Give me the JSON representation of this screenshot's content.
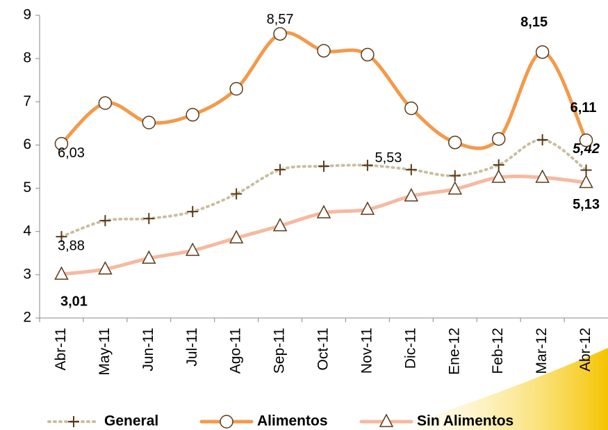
{
  "chart_data": {
    "type": "line",
    "categories": [
      "Abr-11",
      "May-11",
      "Jun-11",
      "Jul-11",
      "Ago-11",
      "Sep-11",
      "Oct-11",
      "Nov-11",
      "Dic-11",
      "Ene-12",
      "Feb-12",
      "Mar-12",
      "Abr-12"
    ],
    "ylim": [
      2,
      9
    ],
    "yticks": [
      2,
      3,
      4,
      5,
      6,
      7,
      8,
      9
    ],
    "series": [
      {
        "name": "General",
        "color": "#c9bf9f",
        "marker_color": "#5a3a1a",
        "label_color": "#000000",
        "values": [
          3.88,
          4.25,
          4.3,
          4.46,
          4.87,
          5.43,
          5.51,
          5.53,
          5.43,
          5.29,
          5.54,
          6.12,
          5.42
        ],
        "value_labels": [
          "3,88",
          null,
          null,
          null,
          null,
          null,
          null,
          "5,53",
          null,
          null,
          null,
          null,
          "5,42"
        ]
      },
      {
        "name": "Alimentos",
        "color": "#f39a4a",
        "marker_color": "#5a3a1a",
        "label_color": "#e0905a",
        "values": [
          6.03,
          6.97,
          6.52,
          6.7,
          7.3,
          8.57,
          8.18,
          8.09,
          6.85,
          6.06,
          6.14,
          8.15,
          6.11
        ],
        "value_labels": [
          "6,03",
          null,
          null,
          null,
          null,
          "8,57",
          null,
          null,
          null,
          null,
          null,
          "8,15",
          "6,11"
        ]
      },
      {
        "name": "Sin Alimentos",
        "color": "#f6b9a0",
        "marker_color": "#5a3a1a",
        "label_color": "#d4a414",
        "values": [
          3.01,
          3.13,
          3.38,
          3.56,
          3.85,
          4.13,
          4.43,
          4.51,
          4.82,
          4.98,
          5.25,
          5.25,
          5.13
        ],
        "value_labels": [
          "3,01",
          null,
          null,
          null,
          null,
          null,
          null,
          null,
          null,
          null,
          null,
          null,
          "5,13"
        ]
      }
    ]
  }
}
